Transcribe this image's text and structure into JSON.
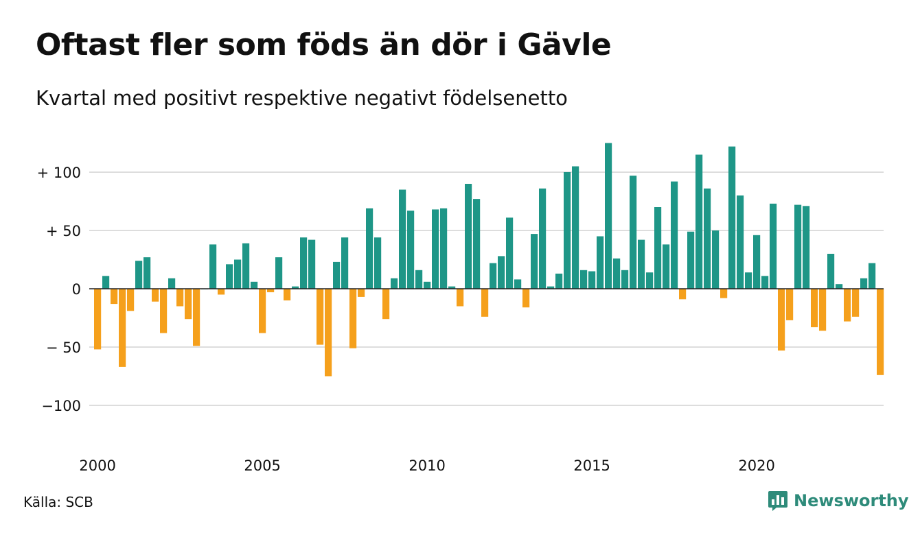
{
  "header": {
    "title": "Oftast fler som föds än dör i Gävle",
    "subtitle": "Kvartal med positivt respektive negativt födelsenetto"
  },
  "footer": {
    "source": "Källa: SCB",
    "brand_name": "Newsworthy",
    "brand_icon": "bar-chart-icon",
    "brand_color": "#2e8b7a"
  },
  "chart_data": {
    "type": "bar",
    "title": "Oftast fler som föds än dör i Gävle",
    "subtitle": "Kvartal med positivt respektive negativt födelsenetto",
    "xlabel": "",
    "ylabel": "",
    "ylim": [
      -135,
      135
    ],
    "grid": true,
    "colors": {
      "positive": "#1e9687",
      "negative": "#f5a01c"
    },
    "y_ticks": [
      {
        "value": 100,
        "label": "+ 100"
      },
      {
        "value": 50,
        "label": "+  50"
      },
      {
        "value": 0,
        "label": "0"
      },
      {
        "value": -50,
        "label": "− 50"
      },
      {
        "value": -100,
        "label": "−100"
      }
    ],
    "x_ticks": [
      {
        "year": 2000,
        "label": "2000"
      },
      {
        "year": 2005,
        "label": "2005"
      },
      {
        "year": 2010,
        "label": "2010"
      },
      {
        "year": 2015,
        "label": "2015"
      },
      {
        "year": 2020,
        "label": "2020"
      }
    ],
    "start_year": 2000,
    "start_quarter": 1,
    "values": [
      -52,
      11,
      -13,
      -67,
      -19,
      24,
      27,
      -11,
      -38,
      9,
      -15,
      -26,
      -49,
      0,
      38,
      -5,
      21,
      25,
      39,
      6,
      -38,
      -3,
      27,
      -10,
      2,
      44,
      42,
      -48,
      -75,
      23,
      44,
      -51,
      -7,
      69,
      44,
      -26,
      9,
      85,
      67,
      16,
      6,
      68,
      69,
      2,
      -15,
      90,
      77,
      -24,
      22,
      28,
      61,
      8,
      -16,
      47,
      86,
      2,
      13,
      100,
      105,
      16,
      15,
      45,
      125,
      26,
      16,
      97,
      42,
      14,
      70,
      38,
      92,
      -9,
      49,
      115,
      86,
      50,
      -8,
      122,
      80,
      14,
      46,
      11,
      73,
      -53,
      -27,
      72,
      71,
      -33,
      -36,
      30,
      4,
      -28,
      -24,
      9,
      22,
      -74
    ]
  }
}
